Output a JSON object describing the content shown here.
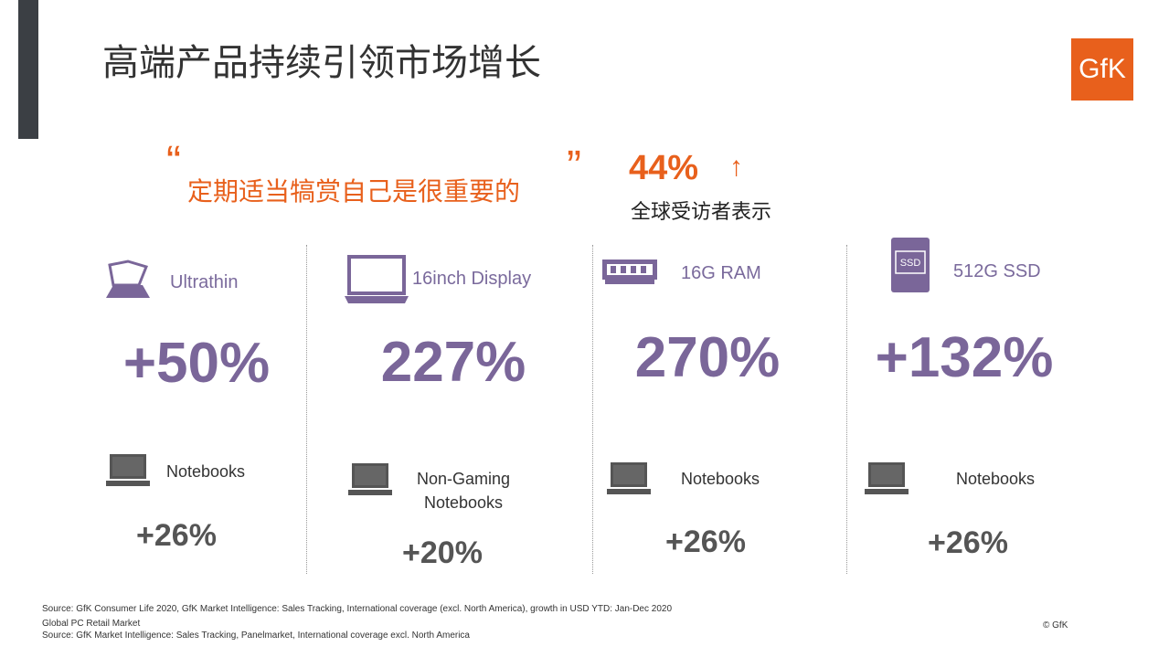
{
  "header": {
    "title": "高端产品持续引领市场增长",
    "logo": "GfK"
  },
  "quote": {
    "open": "“",
    "text": "定期适当犒赏自己是很重要的",
    "close": "”"
  },
  "stat": {
    "value": "44%",
    "arrow": "↑",
    "caption": "全球受访者表示"
  },
  "columns": [
    {
      "feature": "Ultrathin",
      "growth": "+50%",
      "segment": "Notebooks",
      "segment_growth": "+26%"
    },
    {
      "feature": "16inch Display",
      "growth": "227%",
      "segment": "Non-Gaming Notebooks",
      "segment_growth": "+20%"
    },
    {
      "feature": "16G RAM",
      "growth": "270%",
      "segment": "Notebooks",
      "segment_growth": "+26%"
    },
    {
      "feature": "512G SSD",
      "icon_label": "SSD",
      "growth": "+132%",
      "segment": "Notebooks",
      "segment_growth": "+26%"
    }
  ],
  "footer": {
    "sources": [
      "Source: GfK Consumer Life 2020, GfK Market Intelligence: Sales Tracking, International coverage (excl. North America), growth in USD  YTD: Jan-Dec 2020",
      "Global PC Retail Market",
      "Source: GfK Market Intelligence: Sales Tracking, Panelmarket, International coverage excl. North America"
    ],
    "copyright": "© GfK"
  }
}
